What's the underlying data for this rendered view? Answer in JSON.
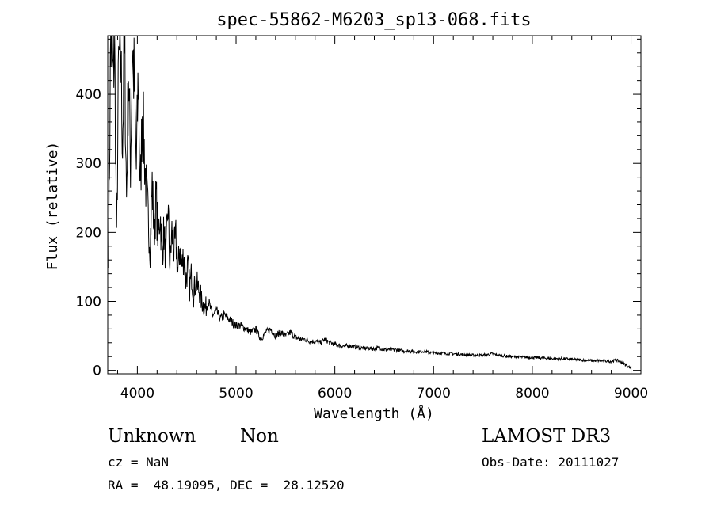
{
  "chart_data": {
    "type": "line",
    "title": "spec-55862-M6203_sp13-068.fits",
    "xlabel": "Wavelength (Å)",
    "ylabel": "Flux (relative)",
    "xlim": [
      3700,
      9100
    ],
    "ylim": [
      -5,
      485
    ],
    "xticks": [
      4000,
      5000,
      6000,
      7000,
      8000,
      9000
    ],
    "yticks": [
      0,
      100,
      200,
      300,
      400
    ],
    "grid": false,
    "series": [
      {
        "x": [
          3710,
          3730,
          3750,
          3770,
          3790,
          3810,
          3830,
          3850,
          3870,
          3890,
          3910,
          3930,
          3950,
          3970,
          3990,
          4010,
          4030,
          4050,
          4070,
          4090,
          4110,
          4130,
          4150,
          4170,
          4190,
          4210,
          4230,
          4250,
          4270,
          4290,
          4310,
          4330,
          4350,
          4370,
          4390,
          4410,
          4430,
          4450,
          4470,
          4490,
          4510,
          4530,
          4550,
          4570,
          4590,
          4610,
          4630,
          4650,
          4670,
          4690,
          4720,
          4760,
          4800,
          4840,
          4880,
          4920,
          4960,
          5000,
          5050,
          5100,
          5150,
          5200,
          5250,
          5300,
          5350,
          5400,
          5450,
          5500,
          5550,
          5600,
          5650,
          5700,
          5750,
          5800,
          5850,
          5900,
          5950,
          6000,
          6050,
          6100,
          6150,
          6200,
          6250,
          6300,
          6350,
          6400,
          6450,
          6500,
          6550,
          6600,
          6650,
          6700,
          6750,
          6800,
          6850,
          6900,
          6950,
          7000,
          7100,
          7200,
          7300,
          7400,
          7500,
          7600,
          7650,
          7700,
          7800,
          7900,
          8000,
          8100,
          8200,
          8300,
          8400,
          8500,
          8600,
          8700,
          8800,
          8850,
          8900,
          8950,
          9000
        ],
        "y": [
          180,
          480,
          420,
          470,
          180,
          440,
          470,
          330,
          480,
          250,
          440,
          300,
          470,
          410,
          290,
          430,
          250,
          380,
          320,
          260,
          220,
          180,
          270,
          200,
          250,
          190,
          230,
          170,
          200,
          160,
          240,
          150,
          200,
          170,
          190,
          140,
          180,
          150,
          170,
          130,
          150,
          120,
          140,
          110,
          130,
          120,
          115,
          100,
          95,
          90,
          100,
          80,
          85,
          75,
          80,
          75,
          70,
          65,
          65,
          60,
          55,
          60,
          45,
          55,
          60,
          50,
          55,
          50,
          55,
          48,
          45,
          45,
          42,
          42,
          40,
          45,
          40,
          38,
          36,
          35,
          36,
          34,
          33,
          32,
          32,
          31,
          33,
          30,
          30,
          30,
          29,
          28,
          28,
          27,
          27,
          28,
          26,
          25,
          25,
          24,
          23,
          22,
          22,
          24,
          22,
          21,
          20,
          19,
          19,
          18,
          17,
          17,
          16,
          15,
          14,
          14,
          13,
          15,
          12,
          8,
          3
        ]
      }
    ]
  },
  "info": {
    "class": "Unknown",
    "subclass": "Non",
    "survey": "LAMOST DR3",
    "cz": "cz = NaN",
    "obs_date": "Obs-Date: 20111027",
    "coords": "RA =  48.19095, DEC =  28.12520"
  }
}
